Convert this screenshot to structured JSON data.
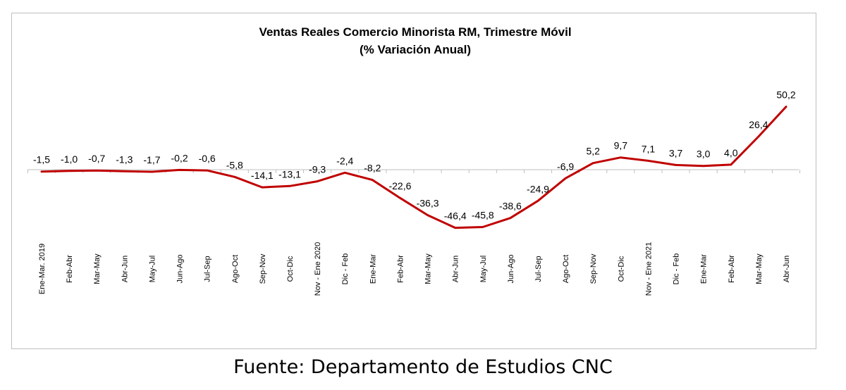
{
  "chart_data": {
    "type": "line",
    "title": "Ventas Reales Comercio Minorista RM, Trimestre Móvil",
    "subtitle": "(% Variación Anual)",
    "categories": [
      "Ene-Mar. 2019",
      "Feb-Abr",
      "Mar-May",
      "Abr-Jun",
      "May-Jul",
      "Jun-Ago",
      "Jul-Sep",
      "Ago-Oct",
      "Sep-Nov",
      "Oct-Dic",
      "Nov - Ene 2020",
      "Dic - Feb",
      "Ene-Mar",
      "Feb-Abr",
      "Mar-May",
      "Abr-Jun",
      "May-Jul",
      "Jun-Ago",
      "Jul-Sep",
      "Ago-Oct",
      "Sep-Nov",
      "Oct-Dic",
      "Nov - Ene 2021",
      "Dic - Feb",
      "Ene-Mar",
      "Feb-Abr",
      "Mar-May",
      "Abr-Jun"
    ],
    "series": [
      {
        "values": [
          -1.5,
          -1.0,
          -0.7,
          -1.3,
          -1.7,
          -0.2,
          -0.6,
          -5.8,
          -14.1,
          -13.1,
          -9.3,
          -2.4,
          -8.2,
          -22.6,
          -36.3,
          -46.4,
          -45.8,
          -38.6,
          -24.9,
          -6.9,
          5.2,
          9.7,
          7.1,
          3.7,
          3.0,
          4.0,
          26.4,
          50.2
        ]
      }
    ],
    "data_labels": [
      "-1,5",
      "-1,0",
      "-0,7",
      "-1,3",
      "-1,7",
      "-0,2",
      "-0,6",
      "-5,8",
      "-14,1",
      "-13,1",
      "-9,3",
      "-2,4",
      "-8,2",
      "-22,6",
      "-36,3",
      "-46,4",
      "-45,8",
      "-38,6",
      "-24,9",
      "-6,9",
      "5,2",
      "9,7",
      "7,1",
      "3,7",
      "3,0",
      "4,0",
      "26,4",
      "50,2"
    ],
    "ylim": [
      -50,
      52
    ],
    "grid": false,
    "line_color": "#c00000",
    "xlabel": "",
    "ylabel": ""
  },
  "source": "Fuente: Departamento de Estudios CNC"
}
